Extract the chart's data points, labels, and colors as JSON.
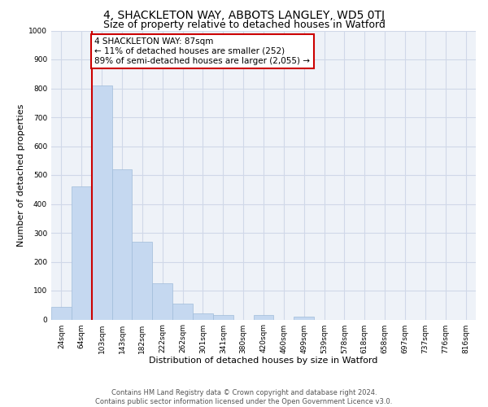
{
  "title": "4, SHACKLETON WAY, ABBOTS LANGLEY, WD5 0TJ",
  "subtitle": "Size of property relative to detached houses in Watford",
  "xlabel": "Distribution of detached houses by size in Watford",
  "ylabel": "Number of detached properties",
  "categories": [
    "24sqm",
    "64sqm",
    "103sqm",
    "143sqm",
    "182sqm",
    "222sqm",
    "262sqm",
    "301sqm",
    "341sqm",
    "380sqm",
    "420sqm",
    "460sqm",
    "499sqm",
    "539sqm",
    "578sqm",
    "618sqm",
    "658sqm",
    "697sqm",
    "737sqm",
    "776sqm",
    "816sqm"
  ],
  "values": [
    45,
    460,
    810,
    520,
    270,
    125,
    55,
    20,
    15,
    0,
    15,
    0,
    10,
    0,
    0,
    0,
    0,
    0,
    0,
    0,
    0
  ],
  "bar_color": "#c5d8f0",
  "bar_edge_color": "#a0bcda",
  "annotation_text": "4 SHACKLETON WAY: 87sqm\n← 11% of detached houses are smaller (252)\n89% of semi-detached houses are larger (2,055) →",
  "annotation_box_color": "#ffffff",
  "annotation_box_edge": "#cc0000",
  "red_line_color": "#cc0000",
  "ylim": [
    0,
    1000
  ],
  "yticks": [
    0,
    100,
    200,
    300,
    400,
    500,
    600,
    700,
    800,
    900,
    1000
  ],
  "grid_color": "#d0d8e8",
  "bg_color": "#eef2f8",
  "footer_line1": "Contains HM Land Registry data © Crown copyright and database right 2024.",
  "footer_line2": "Contains public sector information licensed under the Open Government Licence v3.0.",
  "title_fontsize": 10,
  "subtitle_fontsize": 9,
  "axis_label_fontsize": 8,
  "tick_fontsize": 6.5,
  "annotation_fontsize": 7.5,
  "footer_fontsize": 6
}
